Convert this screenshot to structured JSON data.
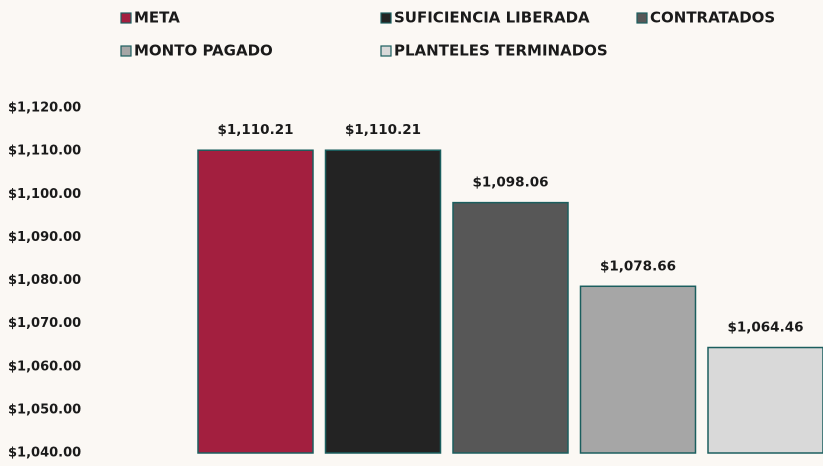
{
  "chart_data": {
    "type": "bar",
    "series": [
      {
        "name": "META",
        "color": "#a31f3f",
        "values": [
          1110.21
        ],
        "value_labels": [
          "$1,110.21"
        ]
      },
      {
        "name": "SUFICIENCIA LIBERADA",
        "color": "#232323",
        "values": [
          1110.21
        ],
        "value_labels": [
          "$1,110.21"
        ]
      },
      {
        "name": "CONTRATADOS",
        "color": "#575757",
        "values": [
          1098.06
        ],
        "value_labels": [
          "$1,098.06"
        ]
      },
      {
        "name": "MONTO PAGADO",
        "color": "#a6a6a6",
        "values": [
          1078.66
        ],
        "value_labels": [
          "$1,078.66"
        ]
      },
      {
        "name": "PLANTELES TERMINADOS",
        "color": "#d9d9d9",
        "values": [
          1064.46
        ],
        "value_labels": [
          "$1,064.46"
        ]
      }
    ],
    "ylim": [
      1040,
      1120
    ],
    "yticks": [
      {
        "value": 1040,
        "label": "$1,040.00"
      },
      {
        "value": 1050,
        "label": "$1,050.00"
      },
      {
        "value": 1060,
        "label": "$1,060.00"
      },
      {
        "value": 1070,
        "label": "$1,070.00"
      },
      {
        "value": 1080,
        "label": "$1,080.00"
      },
      {
        "value": 1090,
        "label": "$1,090.00"
      },
      {
        "value": 1100,
        "label": "$1,100.00"
      },
      {
        "value": 1110,
        "label": "$1,110.00"
      },
      {
        "value": 1120,
        "label": "$1,120.00"
      }
    ],
    "grid": false
  }
}
